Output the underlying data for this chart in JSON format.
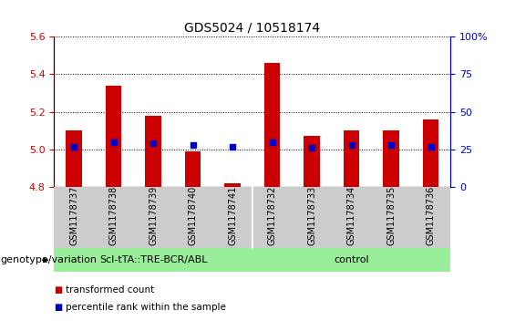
{
  "title": "GDS5024 / 10518174",
  "samples": [
    "GSM1178737",
    "GSM1178738",
    "GSM1178739",
    "GSM1178740",
    "GSM1178741",
    "GSM1178732",
    "GSM1178733",
    "GSM1178734",
    "GSM1178735",
    "GSM1178736"
  ],
  "transformed_count": [
    5.1,
    5.34,
    5.18,
    4.99,
    4.82,
    5.46,
    5.07,
    5.1,
    5.1,
    5.16
  ],
  "percentile_rank_pct": [
    27,
    30,
    29,
    28,
    27,
    30,
    26,
    28,
    28,
    27
  ],
  "bar_bottom": 4.8,
  "ylim_left": [
    4.8,
    5.6
  ],
  "ylim_right": [
    0,
    100
  ],
  "yticks_left": [
    4.8,
    5.0,
    5.2,
    5.4,
    5.6
  ],
  "yticks_right": [
    0,
    25,
    50,
    75,
    100
  ],
  "ytick_labels_right": [
    "0",
    "25",
    "50",
    "75",
    "100%"
  ],
  "group1_label": "Scl-tTA::TRE-BCR/ABL",
  "group2_label": "control",
  "group1_count": 5,
  "group2_count": 5,
  "bar_color": "#cc0000",
  "dot_color": "#0000cc",
  "group_bg_color": "#99ee99",
  "sample_bg_color": "#cccccc",
  "bar_width": 0.4,
  "genotype_label": "genotype/variation",
  "legend1": "transformed count",
  "legend2": "percentile rank within the sample",
  "left_tick_color": "#cc0000",
  "right_tick_color": "#0000cc",
  "grid_color": "#000000",
  "title_fontsize": 10,
  "tick_fontsize": 8,
  "sample_fontsize": 7,
  "legend_fontsize": 8,
  "group_label_fontsize": 8,
  "genotype_fontsize": 8
}
